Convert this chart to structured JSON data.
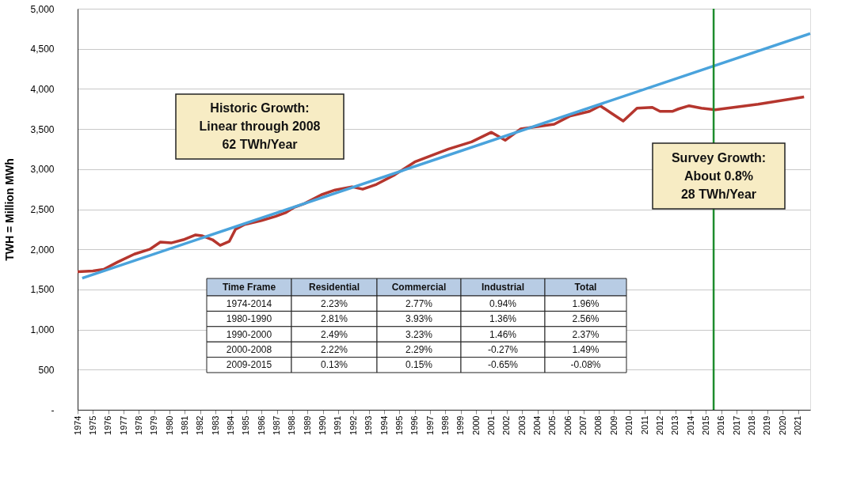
{
  "chart_data": {
    "type": "line",
    "ylabel": "TWH = Million MWh",
    "xlim": [
      1974,
      2021.8
    ],
    "xticks": [
      1974,
      1975,
      1976,
      1977,
      1978,
      1979,
      1980,
      1981,
      1982,
      1983,
      1984,
      1985,
      1986,
      1987,
      1988,
      1989,
      1990,
      1991,
      1992,
      1993,
      1994,
      1995,
      1996,
      1997,
      1998,
      1999,
      2000,
      2001,
      2002,
      2003,
      2004,
      2005,
      2006,
      2007,
      2008,
      2009,
      2010,
      2011,
      2012,
      2013,
      2014,
      2015,
      2016,
      2017,
      2018,
      2019,
      2020,
      2021
    ],
    "ylim": [
      0,
      5000
    ],
    "yticks": [
      {
        "value": 0,
        "label": "-"
      },
      500,
      {
        "value": 1000,
        "label": "1,000"
      },
      {
        "value": 1500,
        "label": "1,500"
      },
      {
        "value": 2000,
        "label": "2,000"
      },
      {
        "value": 2500,
        "label": "2,500"
      },
      {
        "value": 3000,
        "label": "3,000"
      },
      {
        "value": 3500,
        "label": "3,500"
      },
      {
        "value": 4000,
        "label": "4,000"
      },
      {
        "value": 4500,
        "label": "4,500"
      },
      {
        "value": 5000,
        "label": "5,000"
      }
    ],
    "grid": "y",
    "legend": false,
    "marker": "none",
    "line_style": "solid",
    "series": [
      {
        "type": "line",
        "color": "#b5362e",
        "x": [
          1974,
          1975,
          1975.7,
          1976.6,
          1977.7,
          1978.7,
          1979.4,
          1980.1,
          1980.9,
          1981.7,
          1982.1,
          1982.8,
          1983.3,
          1983.9,
          1984.3,
          1984.9,
          1986,
          1986.9,
          1987.6,
          1988.1,
          1988.8,
          1989.9,
          1990.8,
          1991.9,
          1992.6,
          1993.5,
          1994.7,
          1996,
          1998.2,
          1999.7,
          2001,
          2001.9,
          2002.9,
          2005.1,
          2006.1,
          2007.4,
          2008.1,
          2008.8,
          2009.6,
          2010.5,
          2011.5,
          2012,
          2012.8,
          2013.2,
          2013.9,
          2014.7,
          2015.6,
          2018.4,
          2021.4
        ],
        "values": [
          1720,
          1730,
          1750,
          1840,
          1940,
          2000,
          2090,
          2080,
          2120,
          2180,
          2170,
          2120,
          2050,
          2100,
          2250,
          2310,
          2360,
          2410,
          2460,
          2520,
          2570,
          2680,
          2740,
          2780,
          2750,
          2810,
          2930,
          3090,
          3250,
          3340,
          3460,
          3360,
          3500,
          3560,
          3660,
          3720,
          3790,
          3700,
          3600,
          3760,
          3770,
          3720,
          3720,
          3750,
          3790,
          3760,
          3740,
          3810,
          3900
        ]
      },
      {
        "type": "line",
        "color": "#4aa3dc",
        "x": [
          1974.3,
          2021.8
        ],
        "values": [
          1640,
          4690
        ]
      }
    ],
    "ref_lines": [
      {
        "axis": "x",
        "value": 2015.5,
        "color": "#1e8c2e",
        "line_style": "solid"
      }
    ],
    "annotations": [
      "Historic Growth:\nLinear through 2008\n62 TWh/Year",
      "Survey Growth:\nAbout 0.8%\n28 TWh/Year",
      "Time Frame",
      "Residential",
      "Commercial",
      "Industrial",
      "Total",
      "1974-2014",
      "2.23%",
      "2.77%",
      "0.94%",
      "1.96%",
      "1980-1990",
      "2.81%",
      "3.93%",
      "1.36%",
      "2.56%",
      "1990-2000",
      "2.49%",
      "3.23%",
      "1.46%",
      "2.37%",
      "2000-2008",
      "2.22%",
      "2.29%",
      "-0.27%",
      "1.49%",
      "2009-2015",
      "0.13%",
      "0.15%",
      "-0.65%",
      "-0.08%"
    ]
  }
}
